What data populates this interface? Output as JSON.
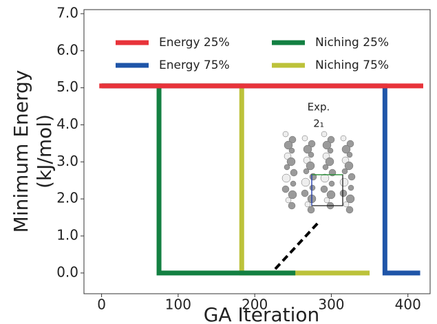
{
  "chart_data": {
    "type": "line",
    "xlabel": "GA Iteration",
    "ylabel": [
      "Minimum Energy",
      "(kJ/mol)"
    ],
    "xlim": [
      -23,
      429
    ],
    "ylim": [
      -0.56,
      7.11
    ],
    "xticks": [
      0,
      100,
      200,
      300,
      400
    ],
    "yticks": [
      {
        "value": 0,
        "label": "0.0"
      },
      {
        "value": 1,
        "label": "1.0"
      },
      {
        "value": 2,
        "label": "2.0"
      },
      {
        "value": 3,
        "label": "3.0"
      },
      {
        "value": 4,
        "label": "4.0"
      },
      {
        "value": 5,
        "label": "5.0"
      },
      {
        "value": 6,
        "label": "6.0"
      },
      {
        "value": 7,
        "label": "7.0"
      }
    ],
    "series": [
      {
        "name": "Energy 25%",
        "color": "#e8333a",
        "x": [
          -3,
          420
        ],
        "y": [
          5.05,
          5.05
        ]
      },
      {
        "name": "Energy 75%",
        "color": "#1f55a8",
        "x": [
          0,
          370,
          370,
          416
        ],
        "y": [
          5.05,
          5.05,
          0,
          0
        ]
      },
      {
        "name": "Niching 25%",
        "color": "#138042",
        "x": [
          0,
          75,
          75,
          253
        ],
        "y": [
          5.05,
          5.05,
          0,
          0
        ]
      },
      {
        "name": "Niching 75%",
        "color": "#bcc23a",
        "x": [
          0,
          183,
          183,
          350
        ],
        "y": [
          5.05,
          5.05,
          0,
          0
        ]
      }
    ],
    "annotations": [
      "Exp.",
      "2₁"
    ]
  }
}
